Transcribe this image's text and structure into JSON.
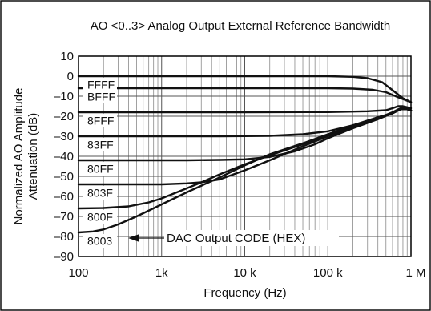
{
  "chart_data": {
    "type": "line",
    "title": "AO <0..3> Analog Output External Reference Bandwidth",
    "xlabel": "Frequency (Hz)",
    "ylabel": [
      "Normalized AO Amplitude",
      "Attenuation (dB)"
    ],
    "x_scale": "log",
    "xlim": [
      100,
      1000000
    ],
    "ylim": [
      -90,
      10
    ],
    "grid": true,
    "x_ticks": [
      {
        "value": 100,
        "label": "100"
      },
      {
        "value": 1000,
        "label": "1k"
      },
      {
        "value": 10000,
        "label": "10 k"
      },
      {
        "value": 100000,
        "label": "100 k"
      },
      {
        "value": 1000000,
        "label": "1 M"
      }
    ],
    "y_ticks": [
      {
        "value": 10,
        "label": "10"
      },
      {
        "value": 0,
        "label": "0"
      },
      {
        "value": -10,
        "label": "–10"
      },
      {
        "value": -20,
        "label": "–20"
      },
      {
        "value": -30,
        "label": "–30"
      },
      {
        "value": -40,
        "label": "–40"
      },
      {
        "value": -50,
        "label": "–50"
      },
      {
        "value": -60,
        "label": "–60"
      },
      {
        "value": -70,
        "label": "–70"
      },
      {
        "value": -80,
        "label": "–80"
      },
      {
        "value": -90,
        "label": "–90"
      }
    ],
    "series": [
      {
        "name": "FFFF",
        "points": [
          [
            100,
            0
          ],
          [
            10000,
            0
          ],
          [
            100000,
            0
          ],
          [
            200000,
            -0.3
          ],
          [
            300000,
            -1
          ],
          [
            450000,
            -3
          ],
          [
            600000,
            -7
          ],
          [
            800000,
            -11
          ],
          [
            1000000,
            -13
          ]
        ]
      },
      {
        "name": "BFFF",
        "points": [
          [
            100,
            -6
          ],
          [
            10000,
            -6
          ],
          [
            100000,
            -6
          ],
          [
            200000,
            -6.2
          ],
          [
            350000,
            -6.8
          ],
          [
            500000,
            -8
          ],
          [
            700000,
            -10.5
          ],
          [
            1000000,
            -13
          ]
        ]
      },
      {
        "name": "8FFF",
        "points": [
          [
            100,
            -18
          ],
          [
            10000,
            -18
          ],
          [
            100000,
            -17.9
          ],
          [
            300000,
            -17.5
          ],
          [
            500000,
            -17
          ],
          [
            600000,
            -16
          ],
          [
            700000,
            -15
          ],
          [
            800000,
            -15
          ],
          [
            900000,
            -15.5
          ],
          [
            1000000,
            -16
          ]
        ]
      },
      {
        "name": "83FF",
        "points": [
          [
            100,
            -30
          ],
          [
            5000,
            -30
          ],
          [
            20000,
            -29.8
          ],
          [
            50000,
            -29
          ],
          [
            100000,
            -27.5
          ],
          [
            200000,
            -24.5
          ],
          [
            400000,
            -21
          ],
          [
            600000,
            -18
          ],
          [
            750000,
            -16
          ],
          [
            900000,
            -16
          ],
          [
            1000000,
            -17
          ]
        ]
      },
      {
        "name": "80FF",
        "points": [
          [
            100,
            -42
          ],
          [
            2000,
            -42
          ],
          [
            5000,
            -41.8
          ],
          [
            10000,
            -41.5
          ],
          [
            20000,
            -40.3
          ],
          [
            40000,
            -37.5
          ],
          [
            70000,
            -34
          ],
          [
            100000,
            -31
          ],
          [
            200000,
            -26
          ],
          [
            400000,
            -21.5
          ],
          [
            600000,
            -18.5
          ],
          [
            750000,
            -16.5
          ],
          [
            900000,
            -16.5
          ],
          [
            1000000,
            -17
          ]
        ]
      },
      {
        "name": "803F",
        "points": [
          [
            100,
            -54
          ],
          [
            1000,
            -54
          ],
          [
            2000,
            -53.5
          ],
          [
            3000,
            -53
          ],
          [
            5000,
            -51.5
          ],
          [
            10000,
            -47
          ],
          [
            20000,
            -42
          ],
          [
            50000,
            -35
          ],
          [
            100000,
            -30
          ],
          [
            200000,
            -25.5
          ],
          [
            400000,
            -21
          ],
          [
            600000,
            -18.5
          ],
          [
            750000,
            -16.5
          ],
          [
            900000,
            -16.5
          ],
          [
            1000000,
            -17
          ]
        ]
      },
      {
        "name": "800F",
        "points": [
          [
            100,
            -66
          ],
          [
            200,
            -65.8
          ],
          [
            400,
            -65
          ],
          [
            700,
            -63
          ],
          [
            1000,
            -61
          ],
          [
            2000,
            -56
          ],
          [
            3000,
            -53
          ],
          [
            5000,
            -49
          ],
          [
            10000,
            -44
          ],
          [
            20000,
            -39.5
          ],
          [
            50000,
            -34
          ],
          [
            100000,
            -29.5
          ],
          [
            200000,
            -25
          ],
          [
            400000,
            -20.5
          ],
          [
            600000,
            -18.5
          ],
          [
            750000,
            -16.5
          ],
          [
            900000,
            -16.5
          ],
          [
            1000000,
            -17
          ]
        ]
      },
      {
        "name": "8003",
        "points": [
          [
            100,
            -78
          ],
          [
            150,
            -77.5
          ],
          [
            200,
            -76.5
          ],
          [
            300,
            -74
          ],
          [
            500,
            -70
          ],
          [
            1000,
            -64
          ],
          [
            2000,
            -58
          ],
          [
            5000,
            -50.5
          ],
          [
            10000,
            -44.5
          ],
          [
            20000,
            -39
          ],
          [
            50000,
            -33.5
          ],
          [
            100000,
            -29
          ],
          [
            200000,
            -24.5
          ],
          [
            400000,
            -20.5
          ],
          [
            600000,
            -18.5
          ],
          [
            750000,
            -16.5
          ],
          [
            900000,
            -16.5
          ],
          [
            1000000,
            -17
          ]
        ]
      }
    ],
    "annotations": [
      {
        "text": "DAC Output CODE (HEX)",
        "points_to": "8003"
      }
    ]
  }
}
